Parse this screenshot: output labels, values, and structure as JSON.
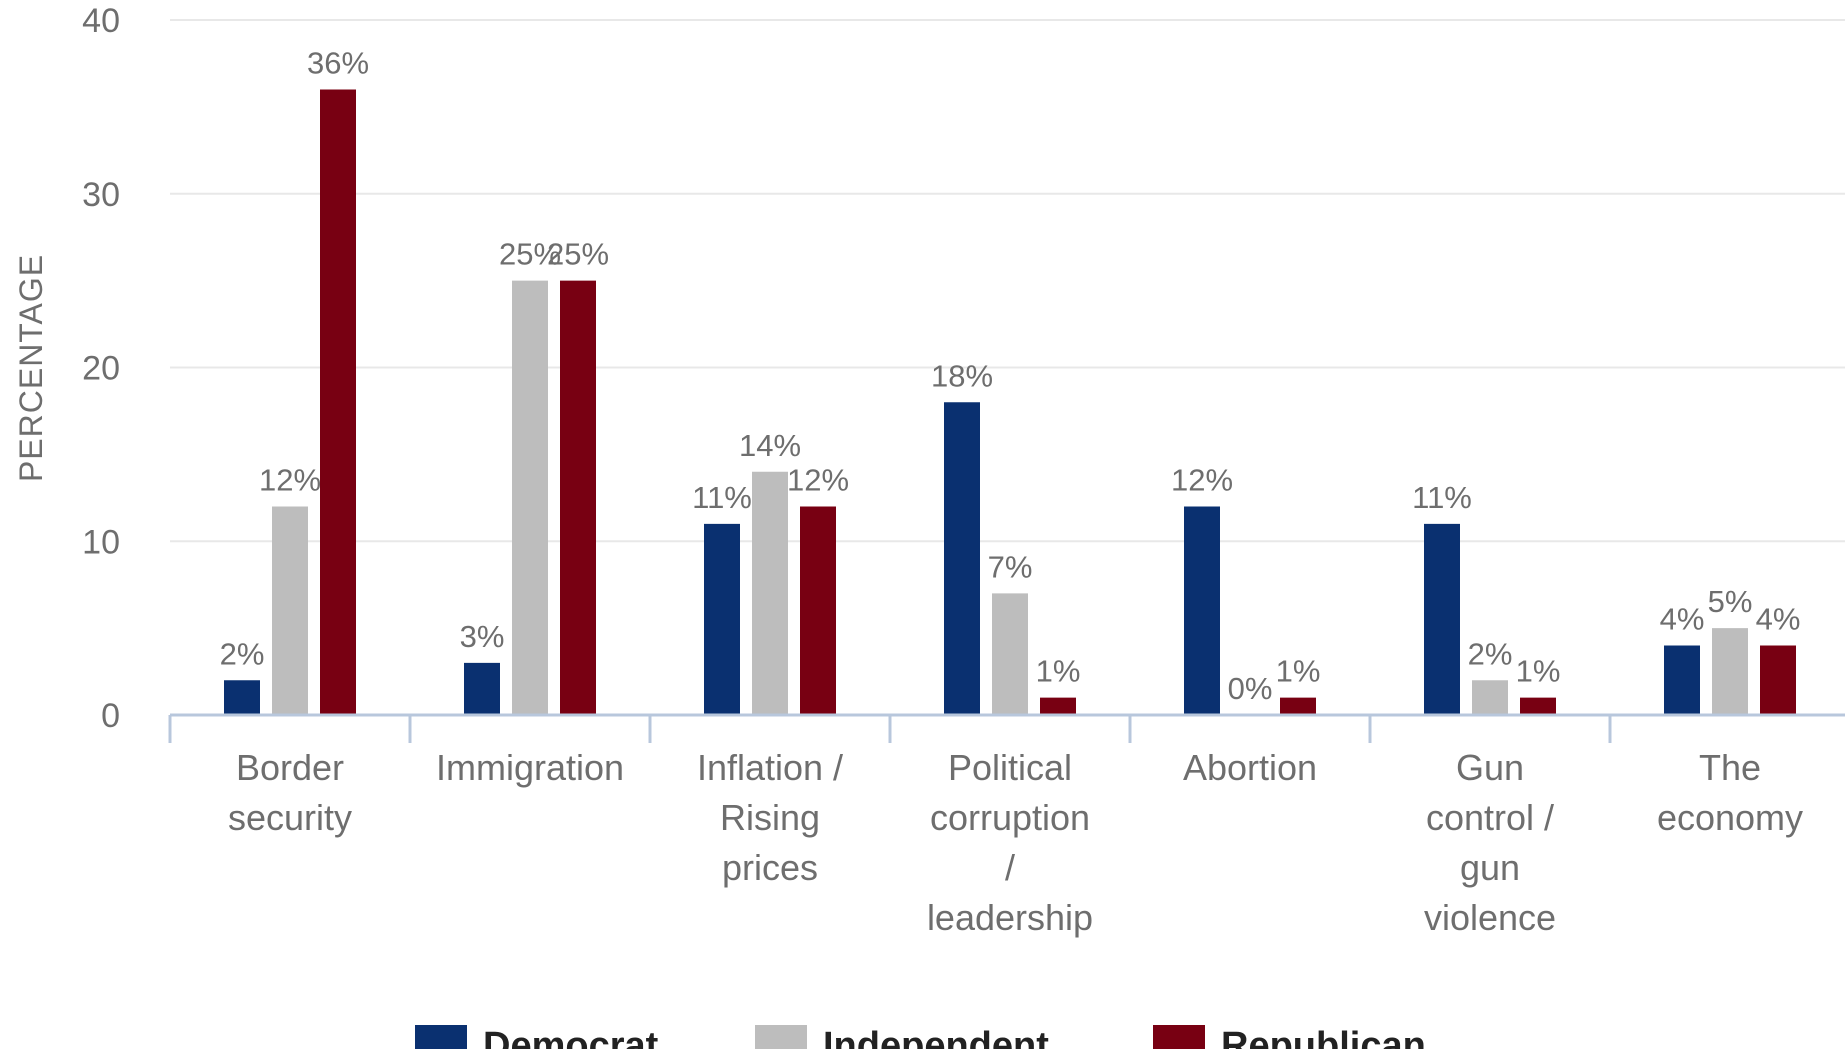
{
  "chart_data": {
    "type": "bar",
    "title": "",
    "xlabel": "",
    "ylabel": "PERCENTAGE",
    "ylim": [
      0,
      40
    ],
    "yticks": [
      0,
      10,
      20,
      30,
      40
    ],
    "grid": true,
    "legend_position": "bottom",
    "categories": [
      [
        "Border",
        "security"
      ],
      [
        "Immigration"
      ],
      [
        "Inflation /",
        "Rising",
        "prices"
      ],
      [
        "Political",
        "corruption",
        "/",
        "leadership"
      ],
      [
        "Abortion"
      ],
      [
        "Gun",
        "control /",
        "gun",
        "violence"
      ],
      [
        "The",
        "economy"
      ]
    ],
    "series": [
      {
        "name": "Democrat",
        "color": "#0a3070",
        "values": [
          2,
          3,
          11,
          18,
          12,
          11,
          4
        ],
        "labels": [
          "2%",
          "3%",
          "11%",
          "18%",
          "12%",
          "11%",
          "4%"
        ]
      },
      {
        "name": "Independent",
        "color": "#bdbdbd",
        "values": [
          12,
          25,
          14,
          7,
          0,
          2,
          5
        ],
        "labels": [
          "12%",
          "25%",
          "14%",
          "7%",
          "0%",
          "2%",
          "5%"
        ]
      },
      {
        "name": "Republican",
        "color": "#780012",
        "values": [
          36,
          25,
          12,
          1,
          1,
          1,
          4
        ],
        "labels": [
          "36%",
          "25%",
          "12%",
          "1%",
          "1%",
          "1%",
          "4%"
        ]
      }
    ]
  }
}
